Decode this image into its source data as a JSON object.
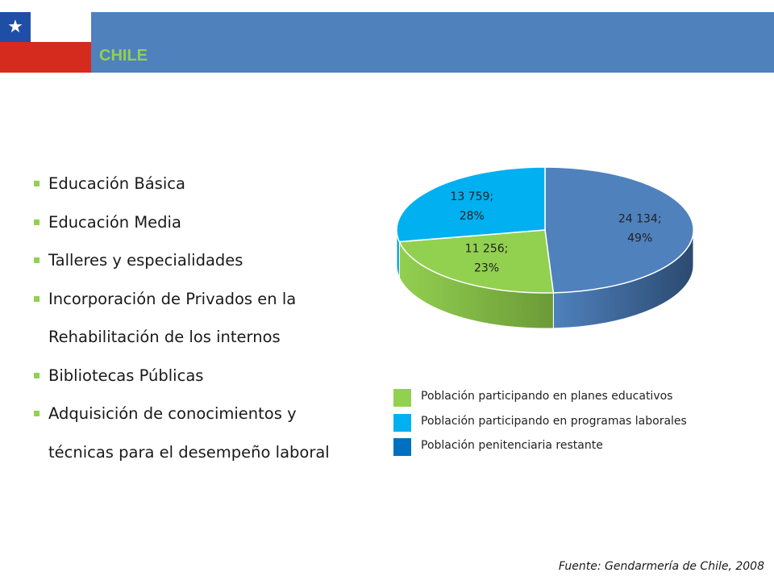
{
  "header": {
    "title": "CHILE",
    "title_color": "#92d050",
    "banner_color": "#4f81bd",
    "flag": {
      "name": "chile-flag",
      "colors": [
        "#1f4ea6",
        "#ffffff",
        "#d52b1e"
      ],
      "star_glyph": "★"
    }
  },
  "bullets": {
    "marker_color": "#92d050",
    "items": [
      {
        "label": "Educación Básica"
      },
      {
        "label": "Educación Media"
      },
      {
        "label": "Talleres y especialidades"
      },
      {
        "label": "Incorporación de Privados en la"
      },
      {
        "label": "Rehabilitación de los internos",
        "continuation": true
      },
      {
        "label": "Bibliotecas Públicas"
      },
      {
        "label": "Adquisición de conocimientos y"
      },
      {
        "label": "técnicas para el desempeño laboral",
        "continuation": true
      }
    ]
  },
  "chart_data": {
    "type": "pie",
    "style": "3d",
    "legend_position": "bottom",
    "series": [
      {
        "values": [
          {
            "category": "Población participando en planes educativos",
            "value": 11256,
            "percent": 23,
            "color": "#92d050",
            "side_color": "#6b9a37",
            "label": [
              "11 256;",
              "23%"
            ]
          },
          {
            "category": "Población participando en programas laborales",
            "value": 13759,
            "percent": 28,
            "color": "#00b0f0",
            "side_color": "#0086b8",
            "label": [
              "13 759;",
              "28%"
            ]
          },
          {
            "category": "Población penitenciaria restante",
            "value": 24134,
            "percent": 49,
            "color": "#4f81bd",
            "side_color": "#2b4a70",
            "label": [
              "24 134;",
              "49%"
            ]
          }
        ]
      }
    ]
  },
  "legend": {
    "items": [
      {
        "label": "Población participando en planes educativos",
        "color": "#92d050"
      },
      {
        "label": "Población participando en programas laborales",
        "color": "#00b0f0"
      },
      {
        "label": "Población penitenciaria restante",
        "color": "#0070c0"
      }
    ]
  },
  "footer": {
    "source": "Fuente: Gendarmería de Chile, 2008"
  }
}
